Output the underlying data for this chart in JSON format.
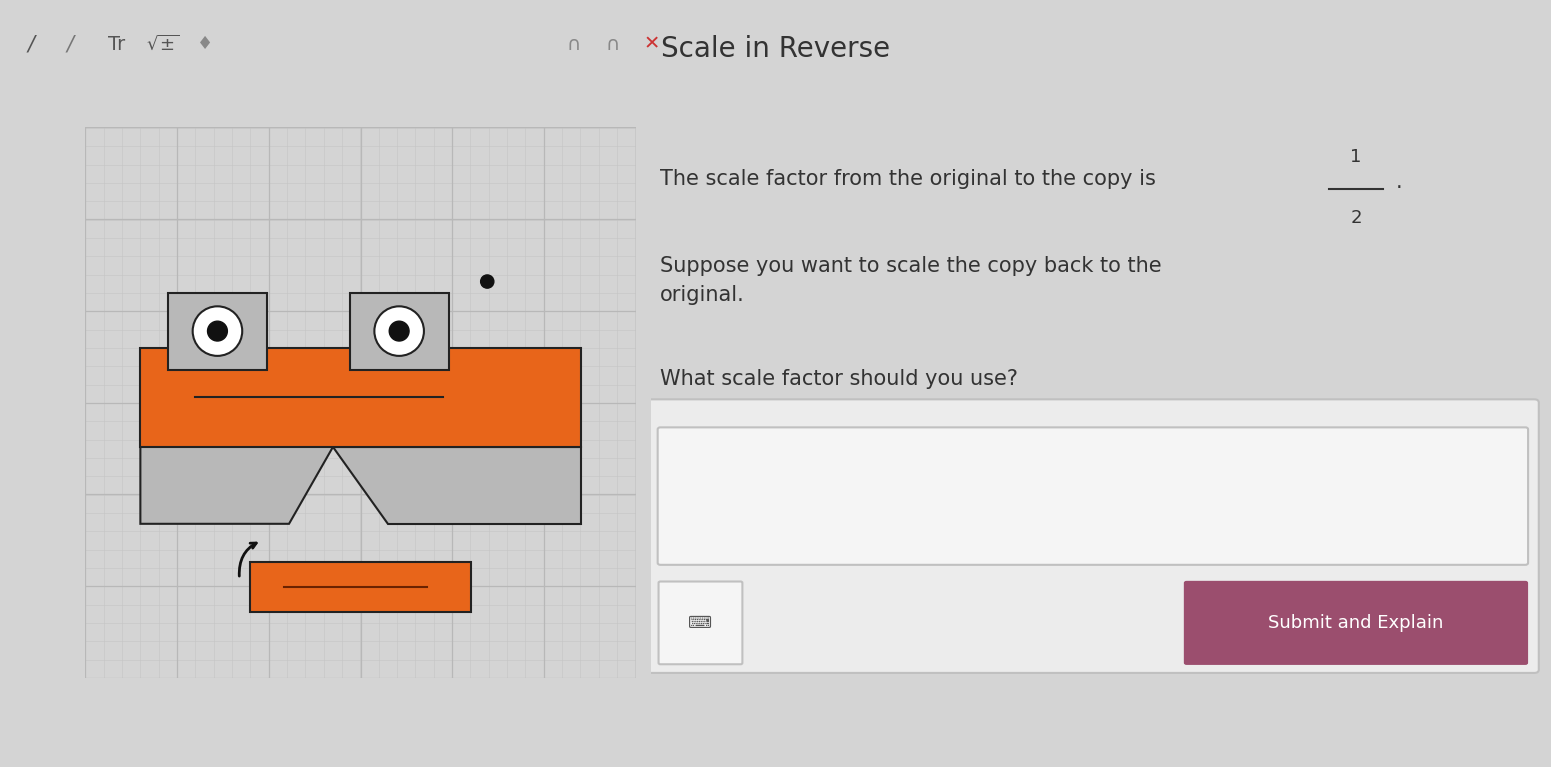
{
  "title": "Scale in Reverse",
  "bg_color": "#d4d4d4",
  "canvas_bg": "#d8d8d8",
  "grid_minor_color": "#c4c4c4",
  "grid_major_color": "#b8b8b8",
  "text1_pre": "The scale factor from the original to the copy is ",
  "text2": "Suppose you want to scale the copy back to the\noriginal.",
  "text3": "What scale factor should you use?",
  "orange": "#E8651A",
  "gray_box": "#b8b8b8",
  "submit_color": "#9B4E6E",
  "submit_text": "Submit and Explain",
  "text_color": "#333333",
  "input_bg": "#ececec",
  "input_border": "#c0c0c0"
}
